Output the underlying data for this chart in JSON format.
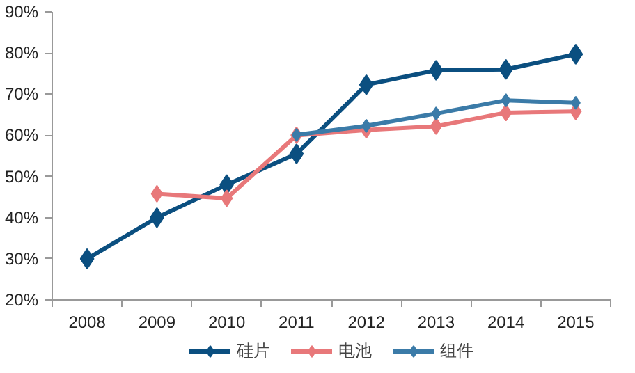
{
  "chart_data": {
    "type": "line",
    "categories": [
      "2008",
      "2009",
      "2010",
      "2011",
      "2012",
      "2013",
      "2014",
      "2015"
    ],
    "series": [
      {
        "name": "硅片",
        "color": "#0b4f80",
        "values": [
          30,
          40,
          48,
          55.5,
          72.3,
          75.8,
          76,
          79.7
        ]
      },
      {
        "name": "电池",
        "color": "#e8787a",
        "values": [
          null,
          45.8,
          44.7,
          60,
          61.3,
          62.2,
          65.5,
          65.8
        ]
      },
      {
        "name": "组件",
        "color": "#3b7ba8",
        "values": [
          null,
          null,
          null,
          60.1,
          62.3,
          65.3,
          68.5,
          67.9
        ]
      }
    ],
    "ylim": [
      20,
      90
    ],
    "yticks": [
      {
        "value": 20,
        "label": "20%"
      },
      {
        "value": 30,
        "label": "30%"
      },
      {
        "value": 40,
        "label": "40%"
      },
      {
        "value": 50,
        "label": "50%"
      },
      {
        "value": 60,
        "label": "60%"
      },
      {
        "value": 70,
        "label": "70%"
      },
      {
        "value": 80,
        "label": "80%"
      },
      {
        "value": 90,
        "label": "90%"
      }
    ],
    "grid": false,
    "legend": "bottom",
    "marker": "diamond",
    "line_style": "solid"
  }
}
